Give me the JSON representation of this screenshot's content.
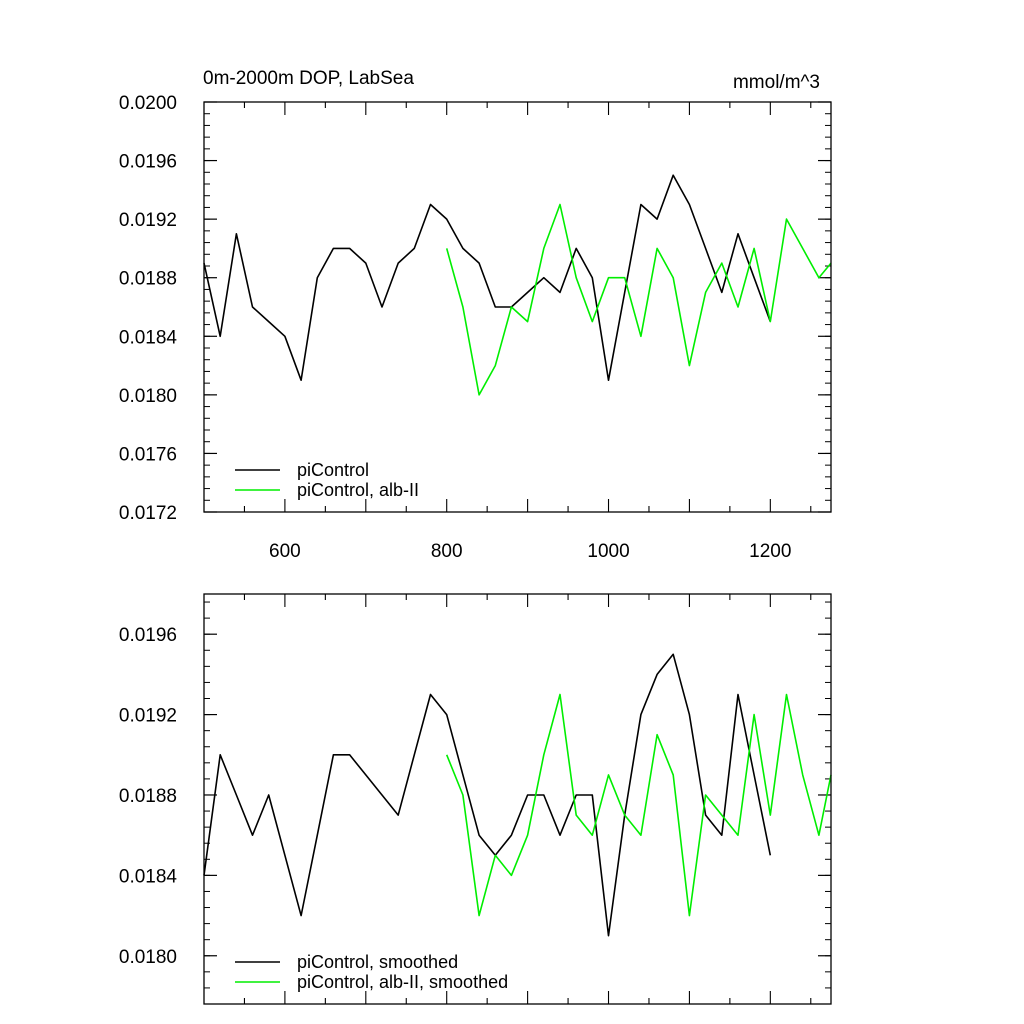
{
  "chart_data": [
    {
      "type": "line",
      "title": "0m-2000m DOP, LabSea",
      "units": "mmol/m^3",
      "xlim": [
        500,
        1275
      ],
      "ylim": [
        0.0172,
        0.02
      ],
      "xticks": [
        "600",
        "800",
        "1000",
        "1200"
      ],
      "yticks": [
        "0.0172",
        "0.0176",
        "0.0180",
        "0.0184",
        "0.0188",
        "0.0192",
        "0.0196",
        "0.0200"
      ],
      "legend": "bottom-left",
      "series": [
        {
          "name": "piControl",
          "color": "#000000",
          "x": [
            500,
            520,
            540,
            560,
            580,
            600,
            620,
            640,
            660,
            680,
            700,
            720,
            740,
            760,
            780,
            800,
            820,
            840,
            860,
            880,
            900,
            920,
            940,
            960,
            980,
            1000,
            1020,
            1040,
            1060,
            1080,
            1100,
            1120,
            1140,
            1160,
            1180,
            1200
          ],
          "y": [
            0.0189,
            0.0184,
            0.0191,
            0.0186,
            0.0185,
            0.0184,
            0.0181,
            0.0188,
            0.019,
            0.019,
            0.0189,
            0.0186,
            0.0189,
            0.019,
            0.0193,
            0.0192,
            0.019,
            0.0189,
            0.0186,
            0.0186,
            0.0187,
            0.0188,
            0.0187,
            0.019,
            0.0188,
            0.0181,
            0.0187,
            0.0193,
            0.0192,
            0.0195,
            0.0193,
            0.019,
            0.0187,
            0.0191,
            0.0188,
            0.0185
          ]
        },
        {
          "name": "piControl, alb-II",
          "color": "#00ee00",
          "x": [
            800,
            820,
            840,
            860,
            880,
            900,
            920,
            940,
            960,
            980,
            1000,
            1020,
            1040,
            1060,
            1080,
            1100,
            1120,
            1140,
            1160,
            1180,
            1200,
            1220,
            1240,
            1260,
            1275
          ],
          "y": [
            0.019,
            0.0186,
            0.018,
            0.0182,
            0.0186,
            0.0185,
            0.019,
            0.0193,
            0.0188,
            0.0185,
            0.0188,
            0.0188,
            0.0184,
            0.019,
            0.0188,
            0.0182,
            0.0187,
            0.0189,
            0.0186,
            0.019,
            0.0185,
            0.0192,
            0.019,
            0.0188,
            0.0189
          ]
        }
      ]
    },
    {
      "type": "line",
      "xlim": [
        500,
        1275
      ],
      "ylim": [
        0.01776,
        0.0198
      ],
      "xticks": [],
      "yticks": [
        "0.0180",
        "0.0184",
        "0.0188",
        "0.0192",
        "0.0196"
      ],
      "legend": "bottom-left",
      "series": [
        {
          "name": "piControl, smoothed",
          "color": "#000000",
          "x": [
            500,
            520,
            540,
            560,
            580,
            600,
            620,
            640,
            660,
            680,
            700,
            720,
            740,
            760,
            780,
            800,
            820,
            840,
            860,
            880,
            900,
            920,
            940,
            960,
            980,
            1000,
            1020,
            1040,
            1060,
            1080,
            1100,
            1120,
            1140,
            1160,
            1180,
            1200
          ],
          "y": [
            0.0184,
            0.019,
            0.0188,
            0.0186,
            0.0188,
            0.0185,
            0.0182,
            0.0186,
            0.019,
            0.019,
            0.0189,
            0.0188,
            0.0187,
            0.019,
            0.0193,
            0.0192,
            0.0189,
            0.0186,
            0.0185,
            0.0186,
            0.0188,
            0.0188,
            0.0186,
            0.0188,
            0.0188,
            0.0181,
            0.0187,
            0.0192,
            0.0194,
            0.0195,
            0.0192,
            0.0187,
            0.0186,
            0.0193,
            0.0189,
            0.0185
          ]
        },
        {
          "name": "piControl, alb-II, smoothed",
          "color": "#00ee00",
          "x": [
            800,
            820,
            840,
            860,
            880,
            900,
            920,
            940,
            960,
            980,
            1000,
            1020,
            1040,
            1060,
            1080,
            1100,
            1120,
            1140,
            1160,
            1180,
            1200,
            1220,
            1240,
            1260,
            1275
          ],
          "y": [
            0.019,
            0.0188,
            0.0182,
            0.0185,
            0.0184,
            0.0186,
            0.019,
            0.0193,
            0.0187,
            0.0186,
            0.0189,
            0.0187,
            0.0186,
            0.0191,
            0.0189,
            0.0182,
            0.0188,
            0.0187,
            0.0186,
            0.0192,
            0.0187,
            0.0193,
            0.0189,
            0.0186,
            0.0189
          ]
        }
      ]
    }
  ]
}
